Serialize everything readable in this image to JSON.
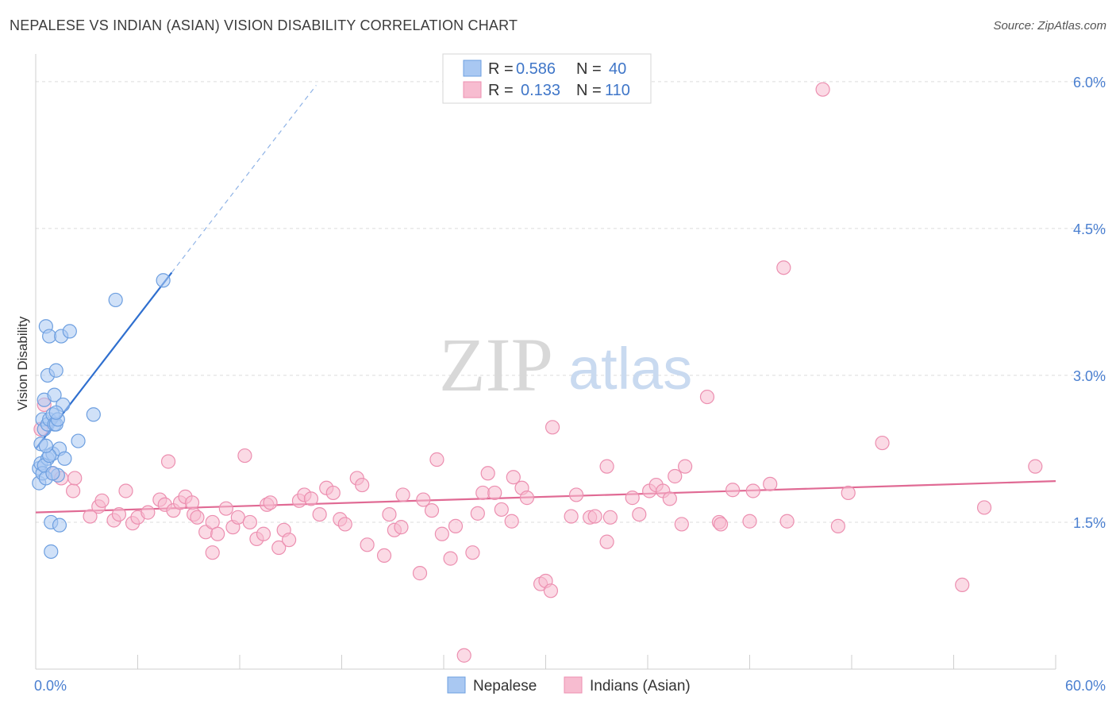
{
  "title": "NEPALESE VS INDIAN (ASIAN) VISION DISABILITY CORRELATION CHART",
  "source": "Source: ZipAtlas.com",
  "watermark": {
    "zip": "ZIP",
    "atlas": "atlas"
  },
  "colors": {
    "nepalese_fill": "#a9c8f2",
    "nepalese_stroke": "#6d9fe0",
    "nepalese_line": "#2f6fcf",
    "indian_fill": "#f7bcd0",
    "indian_stroke": "#ec8fb0",
    "indian_line": "#e06a94",
    "tick": "#4a7fd0",
    "grid": "#dcdcdc"
  },
  "legend": {
    "rows": [
      {
        "r_label": "R =",
        "r_value": "0.586",
        "n_label": "N =",
        "n_value": "40"
      },
      {
        "r_label": "R =",
        "r_value": "0.133",
        "n_label": "N =",
        "n_value": "110"
      }
    ]
  },
  "chart_data": {
    "type": "scatter",
    "title": "NEPALESE VS INDIAN (ASIAN) VISION DISABILITY CORRELATION CHART",
    "xlabel": "",
    "ylabel": "Vision Disability",
    "xlim": [
      0,
      60
    ],
    "ylim": [
      0,
      6.25
    ],
    "x_tick_labels": [
      "0.0%",
      "60.0%"
    ],
    "y_ticks": [
      1.5,
      3.0,
      4.5,
      6.0
    ],
    "y_tick_labels": [
      "1.5%",
      "3.0%",
      "4.5%",
      "6.0%"
    ],
    "grid": true,
    "series": [
      {
        "name": "Nepalese",
        "R": 0.586,
        "N": 40,
        "trend": {
          "x0": 0,
          "y0": 2.25,
          "x1": 8.0,
          "y1": 4.05,
          "dash_to_x": 16.5
        },
        "points": [
          [
            0.2,
            2.05
          ],
          [
            0.2,
            1.9
          ],
          [
            0.3,
            2.1
          ],
          [
            0.3,
            2.3
          ],
          [
            0.4,
            2.0
          ],
          [
            0.4,
            2.55
          ],
          [
            0.5,
            2.75
          ],
          [
            0.5,
            2.45
          ],
          [
            0.6,
            3.5
          ],
          [
            0.6,
            1.95
          ],
          [
            0.7,
            3.0
          ],
          [
            0.7,
            2.5
          ],
          [
            0.7,
            2.15
          ],
          [
            0.8,
            3.4
          ],
          [
            0.8,
            2.55
          ],
          [
            0.9,
            1.5
          ],
          [
            0.9,
            1.2
          ],
          [
            1.0,
            2.6
          ],
          [
            1.0,
            2.2
          ],
          [
            1.1,
            2.8
          ],
          [
            1.1,
            2.5
          ],
          [
            1.2,
            3.05
          ],
          [
            1.2,
            2.5
          ],
          [
            1.3,
            2.55
          ],
          [
            1.3,
            1.98
          ],
          [
            1.4,
            1.47
          ],
          [
            1.4,
            2.25
          ],
          [
            1.5,
            3.4
          ],
          [
            1.6,
            2.7
          ],
          [
            1.7,
            2.15
          ],
          [
            2.0,
            3.45
          ],
          [
            2.5,
            2.33
          ],
          [
            3.4,
            2.6
          ],
          [
            4.7,
            3.77
          ],
          [
            7.5,
            3.97
          ],
          [
            0.5,
            2.08
          ],
          [
            0.8,
            2.18
          ],
          [
            1.0,
            2.0
          ],
          [
            0.6,
            2.28
          ],
          [
            1.2,
            2.62
          ]
        ]
      },
      {
        "name": "Indians (Asian)",
        "R": 0.133,
        "N": 110,
        "trend": {
          "x0": 0,
          "y0": 1.6,
          "x1": 60,
          "y1": 1.92
        },
        "points": [
          [
            0.3,
            2.45
          ],
          [
            0.5,
            2.7
          ],
          [
            1.0,
            2.0
          ],
          [
            1.5,
            1.95
          ],
          [
            2.2,
            1.82
          ],
          [
            2.3,
            1.95
          ],
          [
            3.2,
            1.56
          ],
          [
            3.7,
            1.66
          ],
          [
            3.9,
            1.72
          ],
          [
            4.6,
            1.52
          ],
          [
            4.9,
            1.58
          ],
          [
            5.3,
            1.82
          ],
          [
            5.7,
            1.49
          ],
          [
            6.0,
            1.55
          ],
          [
            6.6,
            1.6
          ],
          [
            7.3,
            1.73
          ],
          [
            7.8,
            2.12
          ],
          [
            7.6,
            1.68
          ],
          [
            8.1,
            1.62
          ],
          [
            8.5,
            1.7
          ],
          [
            8.8,
            1.76
          ],
          [
            9.2,
            1.7
          ],
          [
            9.3,
            1.58
          ],
          [
            9.5,
            1.55
          ],
          [
            10.0,
            1.4
          ],
          [
            10.4,
            1.5
          ],
          [
            10.4,
            1.19
          ],
          [
            10.7,
            1.38
          ],
          [
            11.2,
            1.64
          ],
          [
            11.6,
            1.45
          ],
          [
            11.9,
            1.55
          ],
          [
            12.3,
            2.18
          ],
          [
            12.6,
            1.5
          ],
          [
            13.0,
            1.33
          ],
          [
            13.4,
            1.38
          ],
          [
            13.6,
            1.68
          ],
          [
            13.8,
            1.7
          ],
          [
            14.3,
            1.24
          ],
          [
            14.6,
            1.42
          ],
          [
            14.9,
            1.32
          ],
          [
            15.5,
            1.72
          ],
          [
            15.8,
            1.78
          ],
          [
            16.2,
            1.74
          ],
          [
            16.7,
            1.58
          ],
          [
            17.1,
            1.85
          ],
          [
            17.5,
            1.8
          ],
          [
            17.9,
            1.53
          ],
          [
            18.2,
            1.48
          ],
          [
            18.9,
            1.95
          ],
          [
            19.2,
            1.88
          ],
          [
            19.5,
            1.27
          ],
          [
            20.5,
            1.16
          ],
          [
            20.8,
            1.58
          ],
          [
            21.1,
            1.42
          ],
          [
            21.5,
            1.45
          ],
          [
            21.6,
            1.78
          ],
          [
            22.6,
            0.98
          ],
          [
            22.8,
            1.73
          ],
          [
            23.3,
            1.62
          ],
          [
            23.6,
            2.14
          ],
          [
            23.9,
            1.38
          ],
          [
            24.4,
            1.13
          ],
          [
            24.7,
            1.46
          ],
          [
            25.2,
            0.14
          ],
          [
            25.7,
            1.19
          ],
          [
            26.0,
            1.59
          ],
          [
            26.3,
            1.8
          ],
          [
            26.6,
            2.0
          ],
          [
            27.0,
            1.8
          ],
          [
            27.4,
            1.63
          ],
          [
            28.0,
            1.51
          ],
          [
            28.1,
            1.96
          ],
          [
            28.6,
            1.85
          ],
          [
            28.9,
            1.75
          ],
          [
            29.7,
            0.87
          ],
          [
            30.0,
            0.9
          ],
          [
            30.3,
            0.8
          ],
          [
            30.4,
            2.47
          ],
          [
            31.5,
            1.56
          ],
          [
            31.8,
            1.78
          ],
          [
            32.6,
            1.55
          ],
          [
            32.9,
            1.56
          ],
          [
            33.6,
            1.3
          ],
          [
            33.6,
            2.07
          ],
          [
            35.1,
            1.75
          ],
          [
            35.5,
            1.58
          ],
          [
            36.1,
            1.82
          ],
          [
            36.5,
            1.88
          ],
          [
            36.9,
            1.82
          ],
          [
            37.3,
            1.74
          ],
          [
            37.6,
            1.97
          ],
          [
            38.0,
            1.48
          ],
          [
            38.2,
            2.07
          ],
          [
            39.5,
            2.78
          ],
          [
            40.2,
            1.5
          ],
          [
            40.3,
            1.48
          ],
          [
            41.0,
            1.83
          ],
          [
            42.0,
            1.51
          ],
          [
            42.2,
            1.82
          ],
          [
            43.2,
            1.89
          ],
          [
            44.0,
            4.1
          ],
          [
            44.2,
            1.51
          ],
          [
            46.3,
            5.92
          ],
          [
            47.2,
            1.46
          ],
          [
            47.8,
            1.8
          ],
          [
            49.8,
            2.31
          ],
          [
            54.5,
            0.86
          ],
          [
            55.8,
            1.65
          ],
          [
            58.8,
            2.07
          ],
          [
            33.8,
            1.55
          ]
        ]
      }
    ]
  },
  "bottom_legend": [
    {
      "label": "Nepalese"
    },
    {
      "label": "Indians (Asian)"
    }
  ]
}
